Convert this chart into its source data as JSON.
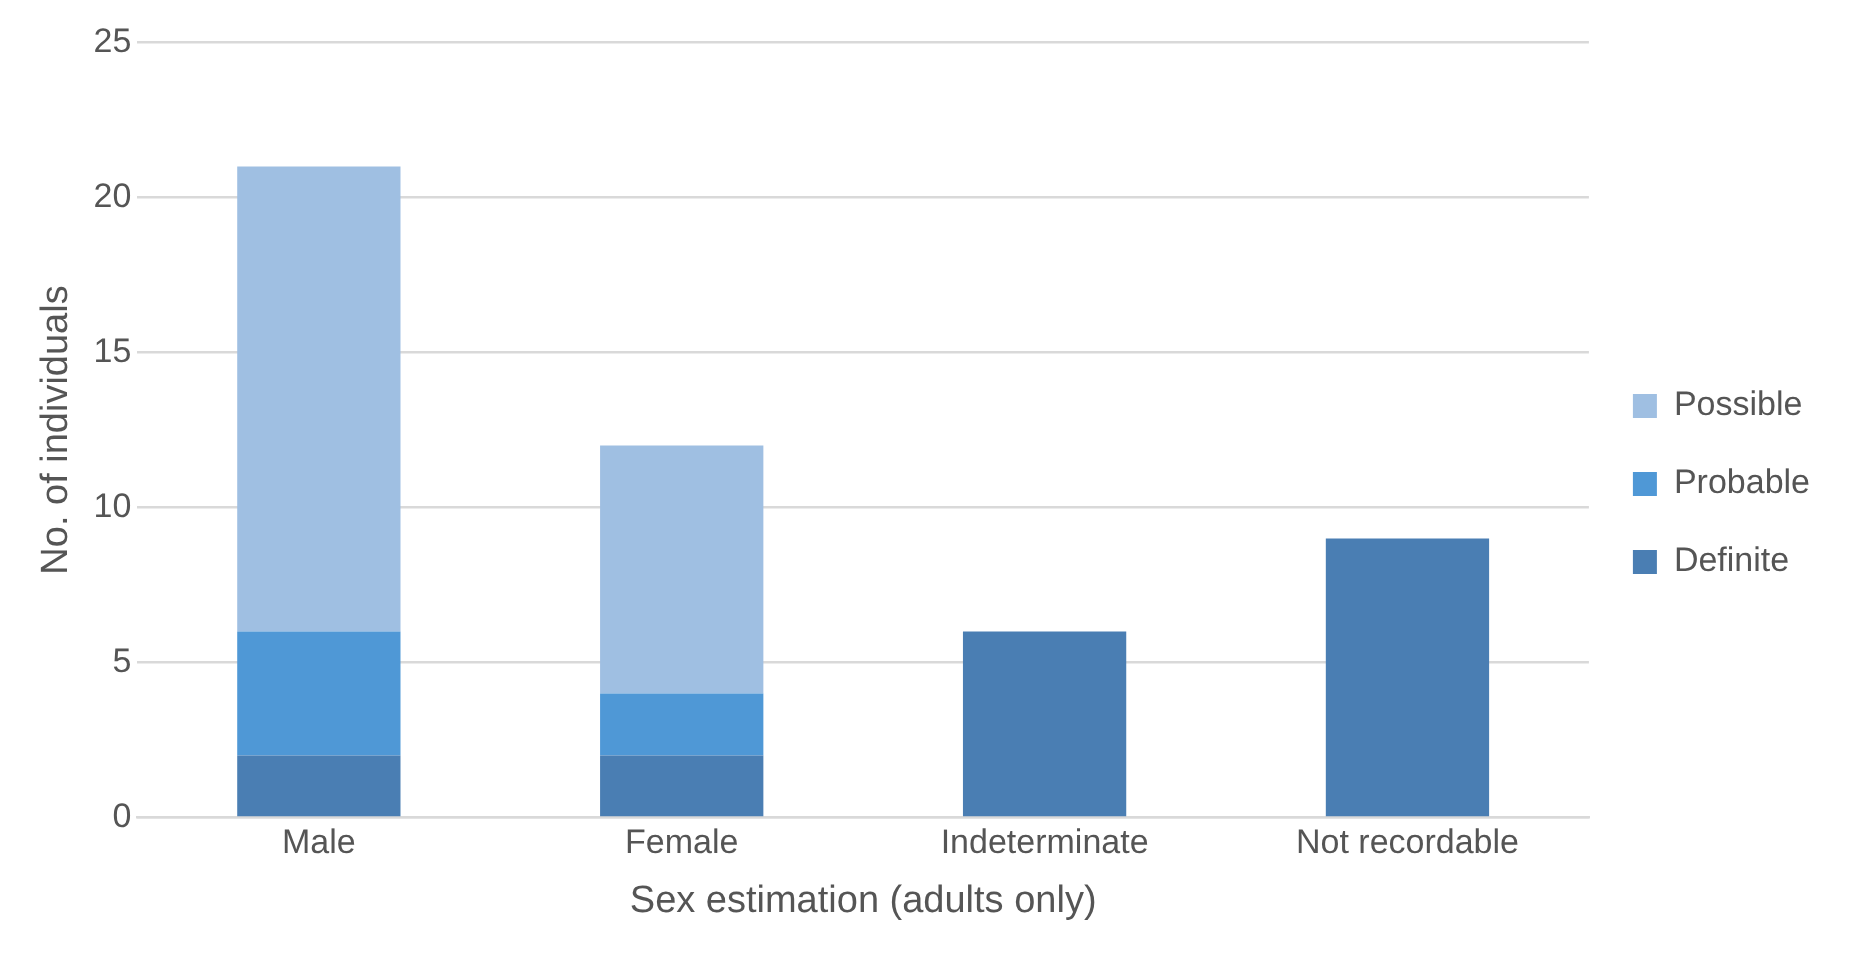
{
  "chart_data": {
    "type": "bar",
    "xlabel": "Sex estimation (adults only)",
    "ylabel": "No. of individuals",
    "categories": [
      "Male",
      "Female",
      "Indeterminate",
      "Not recordable"
    ],
    "stacked": true,
    "series": [
      {
        "name": "Definite",
        "color": "#4a7eb3",
        "values": [
          2,
          2,
          6,
          9
        ]
      },
      {
        "name": "Probable",
        "color": "#4f98d6",
        "values": [
          4,
          2,
          0,
          0
        ]
      },
      {
        "name": "Possible",
        "color": "#9fbfe2",
        "values": [
          15,
          8,
          0,
          0
        ]
      }
    ],
    "ylim": [
      0,
      25
    ],
    "yticks": [
      0,
      5,
      10,
      15,
      20,
      25
    ],
    "grid": "y",
    "legend": "right"
  }
}
